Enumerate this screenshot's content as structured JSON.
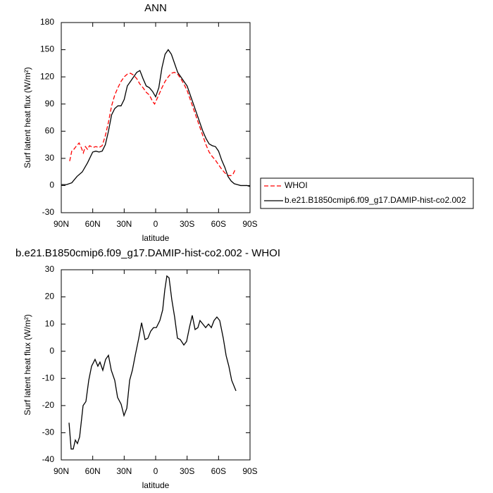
{
  "chart_data": [
    {
      "type": "line",
      "title": "ANN",
      "xlabel": "latitude",
      "ylabel": "Surf latent heat flux (W/m²)",
      "xlim": [
        90,
        -90
      ],
      "xticks": [
        {
          "value": 90,
          "label": "90N"
        },
        {
          "value": 60,
          "label": "60N"
        },
        {
          "value": 30,
          "label": "30N"
        },
        0,
        {
          "value": -30,
          "label": "30S"
        },
        {
          "value": -60,
          "label": "60S"
        },
        {
          "value": -90,
          "label": "90S"
        }
      ],
      "ylim": [
        -30,
        180
      ],
      "yticks": [
        -30,
        0,
        30,
        60,
        90,
        120,
        150,
        180
      ],
      "legend": "right",
      "series": [
        {
          "name": "WHOI",
          "color": "#ff0000",
          "dash": true,
          "x": [
            82,
            80,
            78,
            76,
            73,
            71,
            69,
            67,
            65,
            63,
            60,
            57,
            54,
            51,
            48,
            45,
            42,
            39,
            36,
            33,
            30,
            27,
            24,
            21,
            18,
            15,
            12,
            9,
            6,
            3,
            1,
            -3,
            -6,
            -9,
            -12,
            -15,
            -18,
            -21,
            -24,
            -27,
            -30,
            -33,
            -36,
            -39,
            -42,
            -45,
            -48,
            -51,
            -54,
            -57,
            -60,
            -63,
            -66,
            -69,
            -72,
            -74,
            -76
          ],
          "values": [
            27,
            38,
            40,
            43,
            47,
            42,
            36,
            43,
            40,
            44,
            42,
            43,
            42,
            44,
            55,
            70,
            88,
            100,
            108,
            115,
            120,
            123,
            124,
            122,
            118,
            112,
            108,
            103,
            100,
            93,
            90,
            100,
            108,
            115,
            120,
            124,
            125,
            123,
            118,
            112,
            105,
            95,
            85,
            75,
            65,
            55,
            45,
            37,
            32,
            28,
            23,
            18,
            14,
            11,
            11,
            13,
            18
          ]
        },
        {
          "name": "b.e21.B1850cmip6.f09_g17.DAMIP-hist-co2.002",
          "color": "#000000",
          "dash": false,
          "x": [
            90,
            85,
            80,
            75,
            70,
            65,
            60,
            57,
            54,
            51,
            48,
            45,
            42,
            39,
            36,
            33,
            30,
            27,
            24,
            21,
            18,
            15,
            12,
            9,
            6,
            3,
            0,
            -3,
            -6,
            -9,
            -12,
            -15,
            -18,
            -21,
            -24,
            -27,
            -30,
            -33,
            -36,
            -39,
            -42,
            -45,
            -48,
            -51,
            -54,
            -57,
            -60,
            -63,
            -66,
            -69,
            -72,
            -75,
            -78,
            -81,
            -84,
            -87,
            -90
          ],
          "values": [
            1,
            1,
            3,
            10,
            15,
            25,
            37,
            38,
            37,
            38,
            45,
            60,
            78,
            85,
            88,
            88,
            95,
            110,
            115,
            120,
            125,
            127,
            118,
            110,
            108,
            104,
            98,
            108,
            130,
            145,
            150,
            145,
            135,
            125,
            120,
            115,
            110,
            100,
            90,
            80,
            70,
            60,
            52,
            46,
            44,
            43,
            38,
            28,
            20,
            10,
            5,
            2,
            1,
            0,
            0,
            0,
            -1
          ]
        }
      ]
    },
    {
      "type": "line",
      "title": "b.e21.B1850cmip6.f09_g17.DAMIP-hist-co2.002 - WHOI",
      "xlabel": "latitude",
      "ylabel": "Surf latent heat flux (W/m²)",
      "xlim": [
        90,
        -90
      ],
      "xticks": [
        {
          "value": 90,
          "label": "90N"
        },
        {
          "value": 60,
          "label": "60N"
        },
        {
          "value": 30,
          "label": "30N"
        },
        0,
        {
          "value": -30,
          "label": "30S"
        },
        {
          "value": -60,
          "label": "60S"
        },
        {
          "value": -90,
          "label": "90S"
        }
      ],
      "ylim": [
        -40,
        30
      ],
      "yticks": [
        -40,
        -30,
        -20,
        -10,
        0,
        10,
        20,
        30
      ],
      "series": [
        {
          "color": "#000000",
          "dash": false,
          "x": [
            82.6,
            80.6,
            78.6,
            76.6,
            74.6,
            72.5,
            69.2,
            66.5,
            63.8,
            61.1,
            57.8,
            55.1,
            53.1,
            50.4,
            47.7,
            45.0,
            42.3,
            39.0,
            36.3,
            32.9,
            30.2,
            27.5,
            24.8,
            22.2,
            19.5,
            16.1,
            13.4,
            10.1,
            7.4,
            4.7,
            2.0,
            -0.7,
            -4.0,
            -6.7,
            -8.7,
            -10.7,
            -12.8,
            -15.4,
            -18.1,
            -20.8,
            -23.5,
            -26.9,
            -29.5,
            -32.2,
            -34.9,
            -37.6,
            -40.3,
            -42.3,
            -45.0,
            -47.7,
            -50.4,
            -53.1,
            -55.7,
            -58.4,
            -61.1,
            -64.5,
            -67.2,
            -69.8,
            -72.5,
            -76.6
          ],
          "values": [
            -26.3,
            -36,
            -36,
            -32.7,
            -34,
            -31.5,
            -20,
            -18.5,
            -10.7,
            -5.5,
            -3,
            -5.5,
            -4,
            -7,
            -3,
            -1.5,
            -7,
            -10.7,
            -17,
            -19.5,
            -23.7,
            -21,
            -10.7,
            -7,
            -1.6,
            4.8,
            10.5,
            4.3,
            4.8,
            7.4,
            8.7,
            8.7,
            11.3,
            15.2,
            22.5,
            27.7,
            27,
            19,
            12.6,
            4.8,
            4.3,
            2.3,
            3.6,
            8.7,
            13.2,
            8,
            8.7,
            11.3,
            10,
            8.7,
            10,
            8.7,
            11.3,
            12.6,
            11.3,
            4.8,
            -1.6,
            -5.5,
            -10.7,
            -14.6
          ]
        }
      ]
    }
  ]
}
